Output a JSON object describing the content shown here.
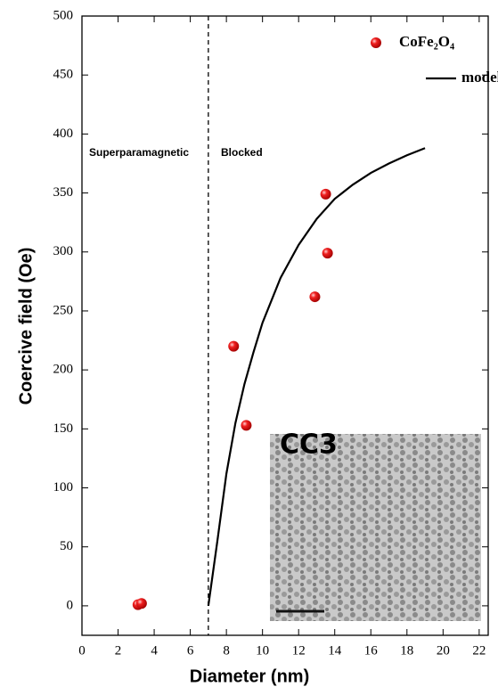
{
  "chart_data": {
    "type": "scatter",
    "xlabel": "Diameter (nm)",
    "ylabel": "Coercive field (Oe)",
    "xlim": [
      0,
      22.5
    ],
    "ylim": [
      -25,
      500
    ],
    "xticks": [
      0,
      2,
      4,
      6,
      8,
      10,
      12,
      14,
      16,
      18,
      20,
      22
    ],
    "yticks": [
      0,
      50,
      100,
      150,
      200,
      250,
      300,
      350,
      400,
      450,
      500
    ],
    "grid": false,
    "legend": "upper right",
    "boundary_x": 7,
    "annotations": [
      "Superparamagnetic",
      "Blocked"
    ],
    "inset_label": "CC3",
    "series": [
      {
        "name": "CoFe₂O₄",
        "type": "scatter",
        "color": "#e3141b",
        "x": [
          3.1,
          3.3,
          8.4,
          9.1,
          12.9,
          13.5,
          13.6
        ],
        "values": [
          1,
          2,
          220,
          153,
          262,
          349,
          299
        ]
      },
      {
        "name": "model",
        "type": "line",
        "color": "#000000",
        "x": [
          7.0,
          7.5,
          8.0,
          8.5,
          9.0,
          9.5,
          10,
          11,
          12,
          13,
          14,
          15,
          16,
          17,
          18,
          19
        ],
        "values": [
          0,
          55,
          112,
          155,
          188,
          215,
          240,
          278,
          306,
          328,
          345,
          357,
          367,
          375,
          382,
          388
        ]
      }
    ]
  }
}
